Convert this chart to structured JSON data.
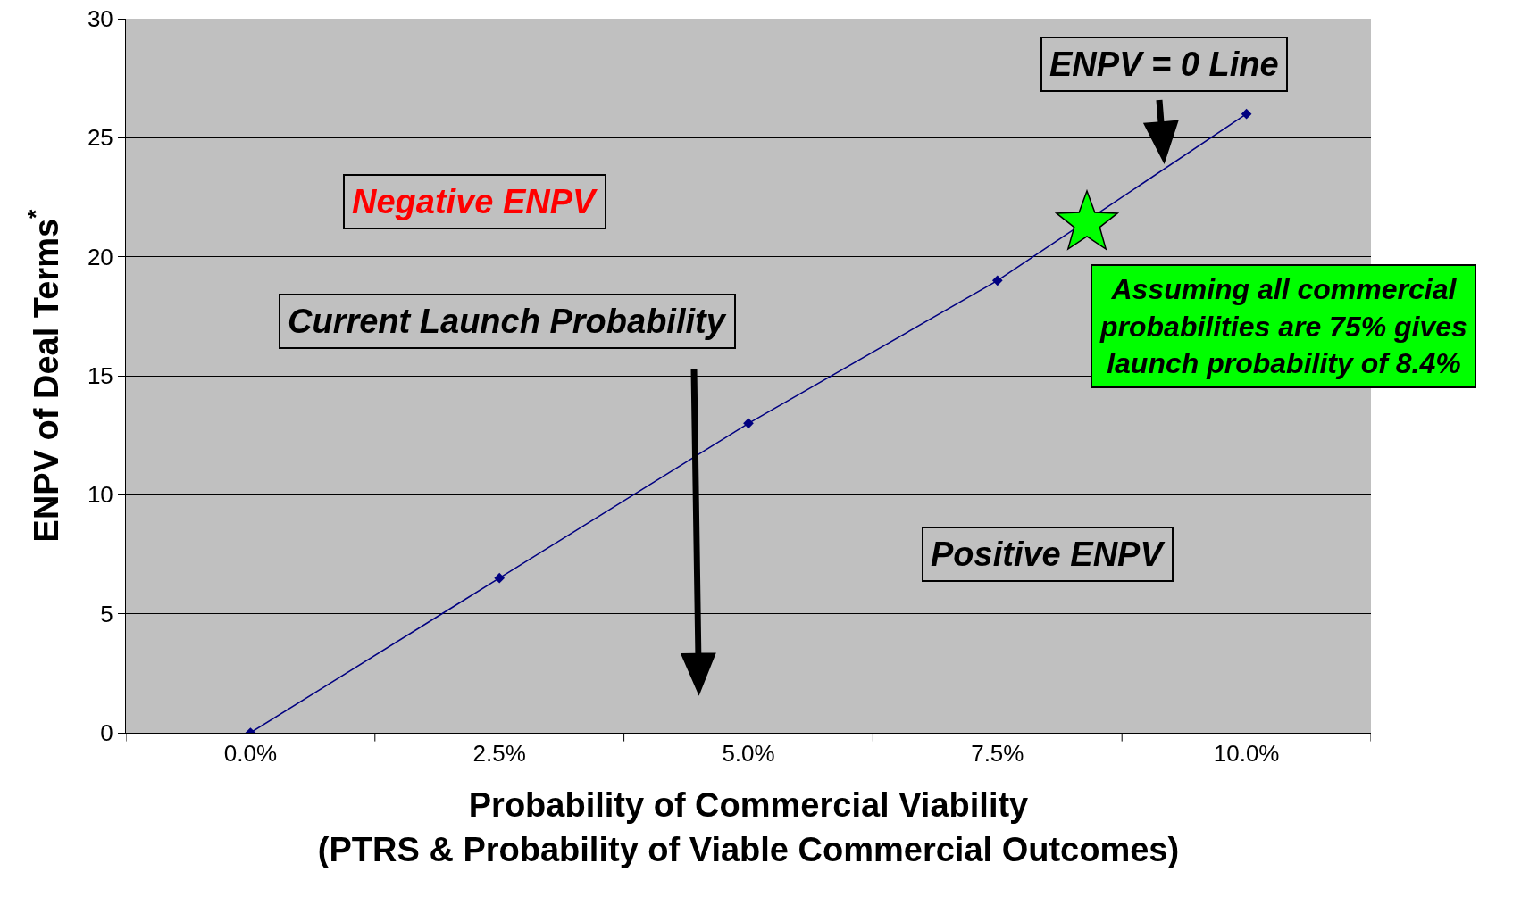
{
  "chart_data": {
    "type": "line",
    "categories": [
      "0.0%",
      "2.5%",
      "5.0%",
      "7.5%",
      "10.0%"
    ],
    "series": [
      {
        "color": "#000080",
        "values": [
          0,
          6.5,
          13,
          19,
          26
        ]
      }
    ],
    "xlabel": "Probability of Commercial Viability\n(PTRS & Probability of Viable Commercial Outcomes)",
    "ylabel": "ENPV of Deal Terms$^{*}$",
    "ylim": [
      0,
      30
    ],
    "yticks": [
      0,
      5,
      10,
      15,
      20,
      25,
      30
    ],
    "grid": "y",
    "marker": "diamond",
    "line_style": "solid",
    "annotations": [
      {
        "text": "ENPV = 0 Line",
        "y": 23.9
      },
      "Negative ENPV",
      "Current Launch Probability",
      "Positive ENPV",
      "Assuming all commercial probabilities are 75% gives launch probability of 8.4%"
    ]
  }
}
